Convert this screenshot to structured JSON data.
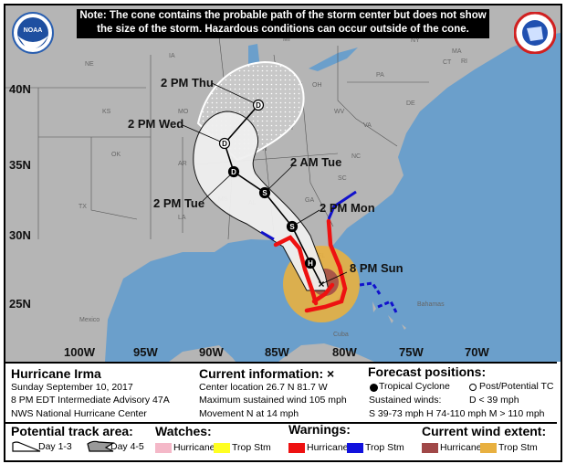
{
  "note": {
    "line1": "Note: The cone contains the probable path of the storm center but does not show",
    "line2": "the size of the storm. Hazardous conditions can occur outside of the cone."
  },
  "logos": {
    "left": "NOAA",
    "right": "National Weather Service"
  },
  "latitudes": [
    "40N",
    "35N",
    "30N",
    "25N"
  ],
  "longitudes": [
    "100W",
    "95W",
    "90W",
    "85W",
    "80W",
    "75W",
    "70W"
  ],
  "places": [
    "NE",
    "IA",
    "MI",
    "NY",
    "NH",
    "MA",
    "CT",
    "RI",
    "PA",
    "OH",
    "IN",
    "KS",
    "MO",
    "WV",
    "VA",
    "KY",
    "DE",
    "OK",
    "AR",
    "TN",
    "NC",
    "SC",
    "TX",
    "MS",
    "AL",
    "GA",
    "LA",
    "FL",
    "Bahamas",
    "Mexico",
    "Cuba"
  ],
  "forecast_points": [
    {
      "label": "8 PM Sun",
      "symbol": "x"
    },
    {
      "label": "",
      "symbol": "H"
    },
    {
      "label": "2 PM Mon",
      "symbol": "S"
    },
    {
      "label": "2 AM Tue",
      "symbol": "S"
    },
    {
      "label": "2 PM Tue",
      "symbol": "D"
    },
    {
      "label": "2 PM Wed",
      "symbol": "D"
    },
    {
      "label": "2 PM Thu",
      "symbol": "D"
    }
  ],
  "colors": {
    "land": "#b5b5b5",
    "ocean": "#6b9fcb",
    "hurricane_warning": "#ee1111",
    "trop_storm_warning": "#1111cc",
    "hurricane_watch": "#f4b8c8",
    "trop_storm_watch": "#ffff22",
    "hurricane_wind": "#a04848",
    "trop_storm_wind": "#e8b040"
  },
  "info": {
    "storm_name": "Hurricane Irma",
    "date": "Sunday September 10, 2017",
    "advisory": "8 PM EDT Intermediate Advisory 47A",
    "center": "NWS National Hurricane Center"
  },
  "current": {
    "title": "Current information: ×",
    "location": "Center location 26.7 N 81.7 W",
    "wind": "Maximum sustained wind 105 mph",
    "movement": "Movement N at 14 mph"
  },
  "forecast": {
    "title": "Forecast positions:",
    "tropical": "Tropical Cyclone",
    "post": "Post/Potential TC",
    "sustained": "Sustained winds:",
    "d": "D < 39 mph",
    "categories": "S 39-73 mph  H 74-110 mph  M > 110 mph"
  },
  "legend": {
    "track_title": "Potential track area:",
    "day13": "Day 1-3",
    "day45": "Day 4-5",
    "watches_title": "Watches:",
    "warnings_title": "Warnings:",
    "wind_title": "Current wind extent:",
    "hurricane": "Hurricane",
    "trop_stm": "Trop Stm"
  }
}
